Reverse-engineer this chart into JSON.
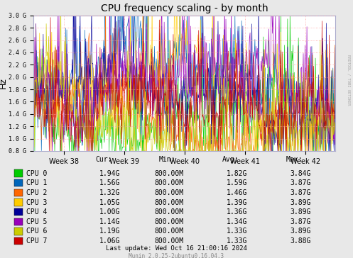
{
  "title": "CPU frequency scaling - by month",
  "ylabel": "Hz",
  "right_label": "RRDTOOL / TOBI OETIKER",
  "plot_bg_color": "#FFFFFF",
  "grid_color": "#FF9999",
  "border_color": "#AAAACC",
  "fig_bg_color": "#E8E8E8",
  "ylim": [
    800000000,
    3000000000
  ],
  "ytick_vals": [
    800000000,
    1000000000,
    1200000000,
    1400000000,
    1600000000,
    1800000000,
    2000000000,
    2200000000,
    2400000000,
    2600000000,
    2800000000,
    3000000000
  ],
  "ytick_labels": [
    "0.8 G",
    "1.0 G",
    "1.2 G",
    "1.4 G",
    "1.6 G",
    "1.8 G",
    "2.0 G",
    "2.2 G",
    "2.4 G",
    "2.6 G",
    "2.8 G",
    "3.0 G"
  ],
  "xtick_labels": [
    "Week 38",
    "Week 39",
    "Week 40",
    "Week 41",
    "Week 42"
  ],
  "cpu_colors": [
    "#00CC00",
    "#0066BB",
    "#FF6600",
    "#FFCC00",
    "#000099",
    "#9900BB",
    "#CCCC00",
    "#CC0000"
  ],
  "cpu_labels": [
    "CPU 0",
    "CPU 1",
    "CPU 2",
    "CPU 3",
    "CPU 4",
    "CPU 5",
    "CPU 6",
    "CPU 7"
  ],
  "legend_cur": [
    "1.94G",
    "1.56G",
    "1.32G",
    "1.05G",
    "1.00G",
    "1.14G",
    "1.19G",
    "1.06G"
  ],
  "legend_min": [
    "800.00M",
    "800.00M",
    "800.00M",
    "800.00M",
    "800.00M",
    "800.00M",
    "800.00M",
    "800.00M"
  ],
  "legend_avg": [
    "1.82G",
    "1.59G",
    "1.46G",
    "1.39G",
    "1.36G",
    "1.34G",
    "1.33G",
    "1.33G"
  ],
  "legend_max": [
    "3.84G",
    "3.87G",
    "3.87G",
    "3.89G",
    "3.89G",
    "3.87G",
    "3.89G",
    "3.88G"
  ],
  "footer_update": "Last update: Wed Oct 16 21:00:16 2024",
  "footer_munin": "Munin 2.0.25-2ubuntu0.16.04.3",
  "num_points": 500,
  "seed": 42
}
